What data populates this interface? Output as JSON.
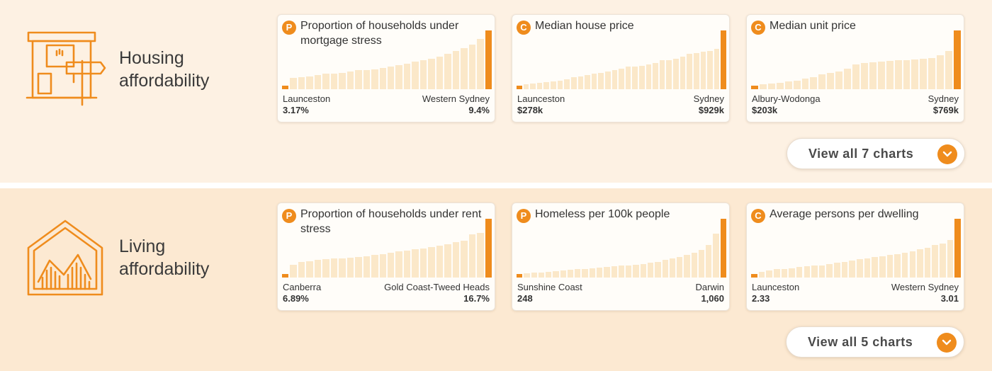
{
  "colors": {
    "accent": "#ef8c1d",
    "bar_muted": "#fbe8c9"
  },
  "sections": [
    {
      "title": "Housing\naffordability",
      "icon": "house-sign-icon",
      "view_all_label": "View all 7 charts",
      "cards": [
        {
          "badge": "P",
          "title": "Proportion of households under mortgage stress",
          "low_name": "Launceston",
          "low_value": "3.17%",
          "high_name": "Western Sydney",
          "high_value": "9.4%",
          "levels": [
            0.06,
            0.19,
            0.21,
            0.22,
            0.24,
            0.26,
            0.27,
            0.28,
            0.3,
            0.32,
            0.33,
            0.34,
            0.36,
            0.38,
            0.41,
            0.43,
            0.47,
            0.5,
            0.52,
            0.55,
            0.6,
            0.65,
            0.7,
            0.76,
            0.85,
            1.0
          ]
        },
        {
          "badge": "C",
          "title": "Median house price",
          "low_name": "Launceston",
          "low_value": "$278k",
          "high_name": "Sydney",
          "high_value": "$929k",
          "levels": [
            0.06,
            0.09,
            0.1,
            0.11,
            0.12,
            0.13,
            0.15,
            0.17,
            0.2,
            0.22,
            0.24,
            0.26,
            0.28,
            0.3,
            0.32,
            0.35,
            0.38,
            0.38,
            0.4,
            0.42,
            0.44,
            0.49,
            0.5,
            0.52,
            0.55,
            0.6,
            0.62,
            0.64,
            0.65,
            0.69,
            1.0
          ]
        },
        {
          "badge": "C",
          "title": "Median unit price",
          "low_name": "Albury-Wodonga",
          "low_value": "$203k",
          "high_name": "Sydney",
          "high_value": "$769k",
          "levels": [
            0.06,
            0.09,
            0.1,
            0.11,
            0.13,
            0.15,
            0.18,
            0.21,
            0.25,
            0.28,
            0.3,
            0.35,
            0.42,
            0.44,
            0.46,
            0.47,
            0.48,
            0.49,
            0.5,
            0.51,
            0.52,
            0.53,
            0.58,
            0.65,
            1.0
          ]
        }
      ]
    },
    {
      "title": "Living\naffordability",
      "icon": "house-chart-icon",
      "view_all_label": "View all 5 charts",
      "cards": [
        {
          "badge": "P",
          "title": "Proportion of households under rent stress",
          "low_name": "Canberra",
          "low_value": "6.89%",
          "high_name": "Gold Coast-Tweed Heads",
          "high_value": "16.7%",
          "levels": [
            0.06,
            0.22,
            0.27,
            0.28,
            0.3,
            0.31,
            0.32,
            0.33,
            0.34,
            0.35,
            0.36,
            0.38,
            0.4,
            0.42,
            0.44,
            0.46,
            0.48,
            0.5,
            0.52,
            0.54,
            0.57,
            0.6,
            0.63,
            0.74,
            0.76,
            1.0
          ]
        },
        {
          "badge": "P",
          "title": "Homeless per 100k people",
          "low_name": "Sunshine Coast",
          "low_value": "248",
          "high_name": "Darwin",
          "high_value": "1,060",
          "levels": [
            0.06,
            0.07,
            0.08,
            0.09,
            0.1,
            0.11,
            0.12,
            0.13,
            0.14,
            0.15,
            0.16,
            0.17,
            0.18,
            0.19,
            0.2,
            0.21,
            0.22,
            0.23,
            0.25,
            0.27,
            0.3,
            0.32,
            0.35,
            0.38,
            0.42,
            0.47,
            0.55,
            0.75,
            1.0
          ]
        },
        {
          "badge": "C",
          "title": "Average persons per dwelling",
          "low_name": "Launceston",
          "low_value": "2.33",
          "high_name": "Western Sydney",
          "high_value": "3.01",
          "levels": [
            0.06,
            0.1,
            0.12,
            0.14,
            0.15,
            0.16,
            0.18,
            0.19,
            0.2,
            0.21,
            0.23,
            0.25,
            0.27,
            0.29,
            0.31,
            0.33,
            0.35,
            0.36,
            0.38,
            0.4,
            0.42,
            0.45,
            0.48,
            0.51,
            0.55,
            0.58,
            0.64,
            1.0
          ]
        }
      ]
    }
  ]
}
